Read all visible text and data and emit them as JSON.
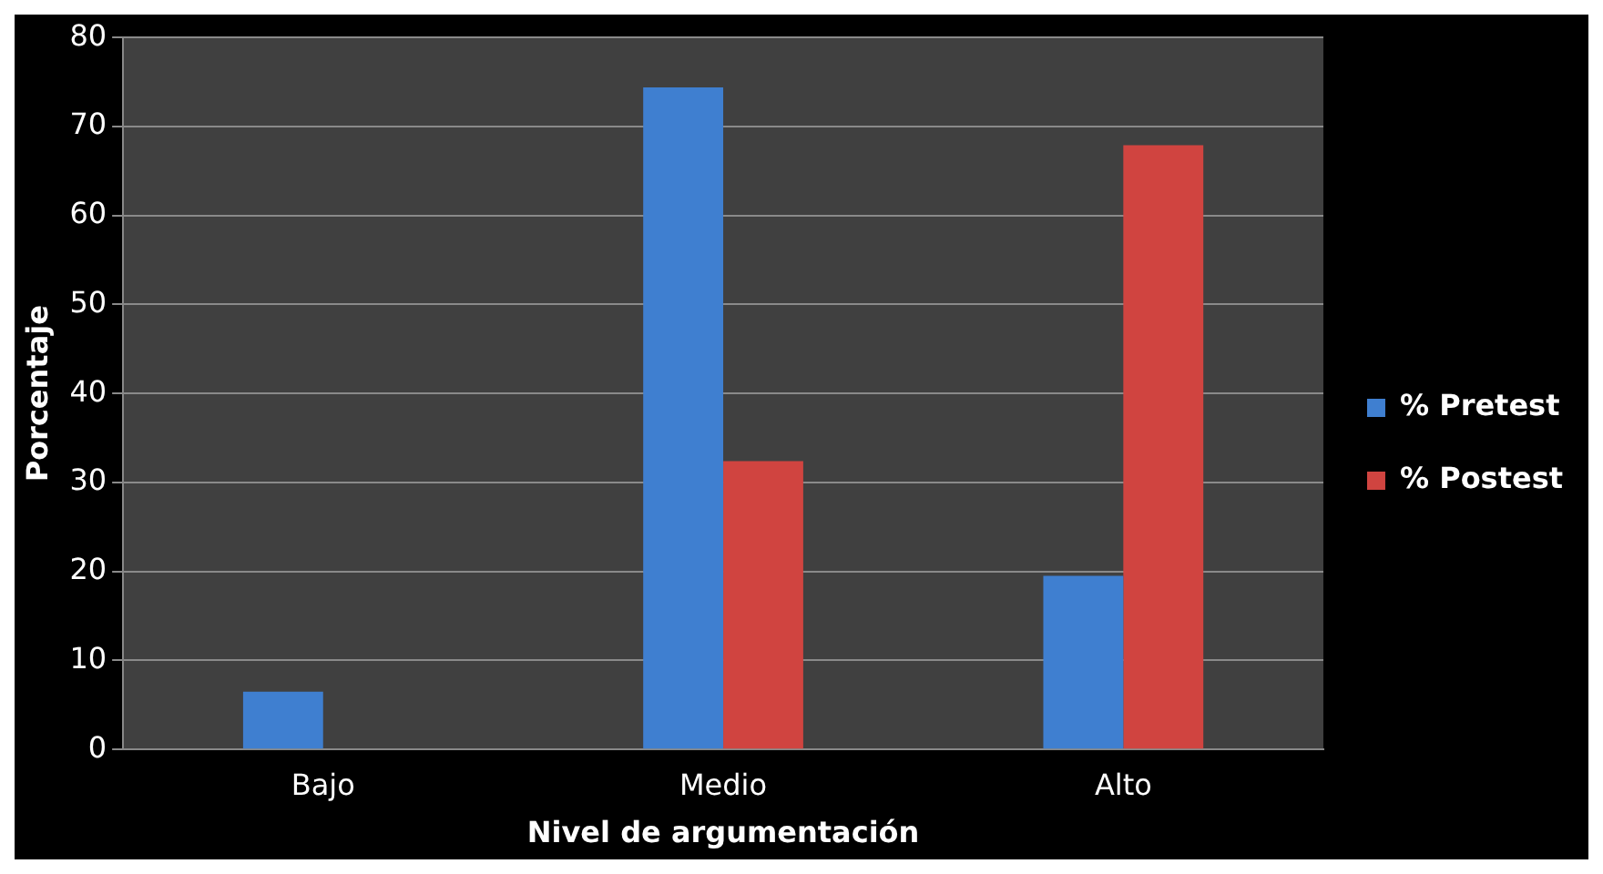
{
  "chart_data": {
    "type": "bar",
    "xlabel": "Nivel de argumentación",
    "ylabel": "Porcentaje",
    "categories": [
      "Bajo",
      "Medio",
      "Alto"
    ],
    "series": [
      {
        "name": "% Pretest",
        "color": "#3f7fd0",
        "values": [
          6.5,
          74.4,
          19.5
        ]
      },
      {
        "name": "% Postest",
        "color": "#d04440",
        "values": [
          0,
          32.4,
          67.9
        ]
      }
    ],
    "ylim": [
      0,
      80
    ],
    "yticks": [
      0,
      10,
      20,
      30,
      40,
      50,
      60,
      70,
      80
    ],
    "grid": "y",
    "legend": "right"
  }
}
